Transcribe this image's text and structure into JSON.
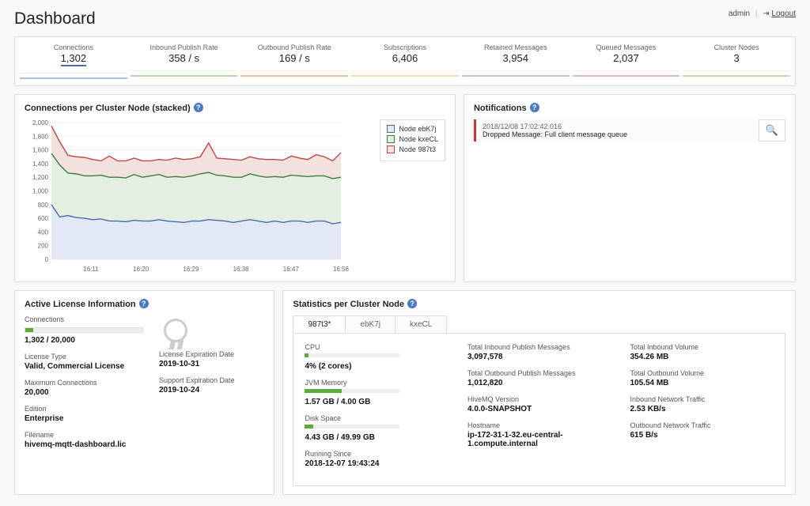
{
  "header": {
    "title": "Dashboard",
    "user": "admin",
    "logout": "Logout"
  },
  "kpis": [
    {
      "label": "Connections",
      "value": "1,302",
      "color": "#6a84c9",
      "active": true
    },
    {
      "label": "Inbound Publish Rate",
      "value": "358 / s",
      "color": "#7fb36a"
    },
    {
      "label": "Outbound Publish Rate",
      "value": "169 / s",
      "color": "#d98a6f"
    },
    {
      "label": "Subscriptions",
      "value": "6,406",
      "color": "#e6c25e"
    },
    {
      "label": "Retained Messages",
      "value": "3,954",
      "color": "#9a8fc9"
    },
    {
      "label": "Queued Messages",
      "value": "2,037",
      "color": "#d77b8c"
    },
    {
      "label": "Cluster Nodes",
      "value": "3",
      "color": "#b8a97e"
    }
  ],
  "chart": {
    "title": "Connections per Cluster Node (stacked)",
    "legend": [
      "Node ebK7j",
      "Node kxeCL",
      "Node 987t3"
    ],
    "ylim": [
      0,
      2000
    ],
    "ytick_step": 200,
    "xticks": [
      "16:11",
      "16:20",
      "16:29",
      "16:38",
      "16:47",
      "16:56"
    ],
    "series_colors": {
      "a": "#4a6ab5",
      "b": "#3c7f3c",
      "c": "#c24545"
    },
    "fill_colors": {
      "a": "#e3e8f5",
      "b": "#e3efe0",
      "c": "#f3e1de"
    },
    "series_a": [
      800,
      620,
      640,
      610,
      600,
      580,
      590,
      560,
      560,
      550,
      570,
      560,
      560,
      580,
      560,
      550,
      540,
      560,
      560,
      580,
      570,
      560,
      540,
      560,
      580,
      560,
      540,
      560,
      540,
      560,
      560,
      540,
      560,
      560,
      520,
      540
    ],
    "series_b": [
      1550,
      1380,
      1260,
      1250,
      1220,
      1220,
      1230,
      1200,
      1200,
      1190,
      1240,
      1200,
      1220,
      1240,
      1200,
      1210,
      1200,
      1220,
      1250,
      1270,
      1230,
      1220,
      1200,
      1200,
      1250,
      1220,
      1200,
      1210,
      1200,
      1230,
      1220,
      1210,
      1220,
      1220,
      1180,
      1200
    ],
    "series_c": [
      1950,
      1720,
      1520,
      1500,
      1490,
      1460,
      1440,
      1510,
      1440,
      1440,
      1480,
      1440,
      1440,
      1460,
      1450,
      1480,
      1460,
      1470,
      1500,
      1700,
      1480,
      1470,
      1460,
      1450,
      1500,
      1470,
      1460,
      1460,
      1450,
      1510,
      1480,
      1460,
      1530,
      1500,
      1440,
      1560
    ]
  },
  "notifications": {
    "title": "Notifications",
    "item": {
      "ts": "2018/12/08 17:02:42.016",
      "msg": "Dropped Message: Full client message queue"
    },
    "search_icon": "🔍"
  },
  "license": {
    "title": "Active License Information",
    "connections": {
      "label": "Connections",
      "value": "1,302 / 20,000",
      "pct": 6.5
    },
    "type": {
      "label": "License Type",
      "value": "Valid, Commercial License"
    },
    "max": {
      "label": "Maximum Connections",
      "value": "20,000"
    },
    "edition": {
      "label": "Edition",
      "value": "Enterprise"
    },
    "filename": {
      "label": "Filename",
      "value": "hivemq-mqtt-dashboard.lic"
    },
    "expiry": {
      "label": "License Expiration Date",
      "value": "2019-10-31"
    },
    "support": {
      "label": "Support Expiration Date",
      "value": "2019-10-24"
    }
  },
  "stats": {
    "title": "Statistics per Cluster Node",
    "tabs": [
      "987t3*",
      "ebK7j",
      "kxeCL"
    ],
    "active_tab": 0,
    "cpu": {
      "label": "CPU",
      "value": "4% (2 cores)",
      "pct": 4
    },
    "jvm": {
      "label": "JVM Memory",
      "value": "1.57 GB / 4.00 GB",
      "pct": 39
    },
    "disk": {
      "label": "Disk Space",
      "value": "4.43 GB / 49.99 GB",
      "pct": 9
    },
    "since": {
      "label": "Running Since",
      "value": "2018-12-07 19:43:24"
    },
    "tipm": {
      "label": "Total Inbound Publish Messages",
      "value": "3,097,578"
    },
    "topm": {
      "label": "Total Outbound Publish Messages",
      "value": "1,012,820"
    },
    "hv": {
      "label": "HiveMQ Version",
      "value": "4.0.0-SNAPSHOT"
    },
    "host": {
      "label": "Hostname",
      "value": "ip-172-31-1-32.eu-central-1.compute.internal"
    },
    "tiv": {
      "label": "Total Inbound Volume",
      "value": "354.26 MB"
    },
    "tov": {
      "label": "Total Outbound Volume",
      "value": "105.54 MB"
    },
    "int": {
      "label": "Inbound Network Traffic",
      "value": "2.53 KB/s"
    },
    "ont": {
      "label": "Outbound Network Traffic",
      "value": "615 B/s"
    }
  }
}
